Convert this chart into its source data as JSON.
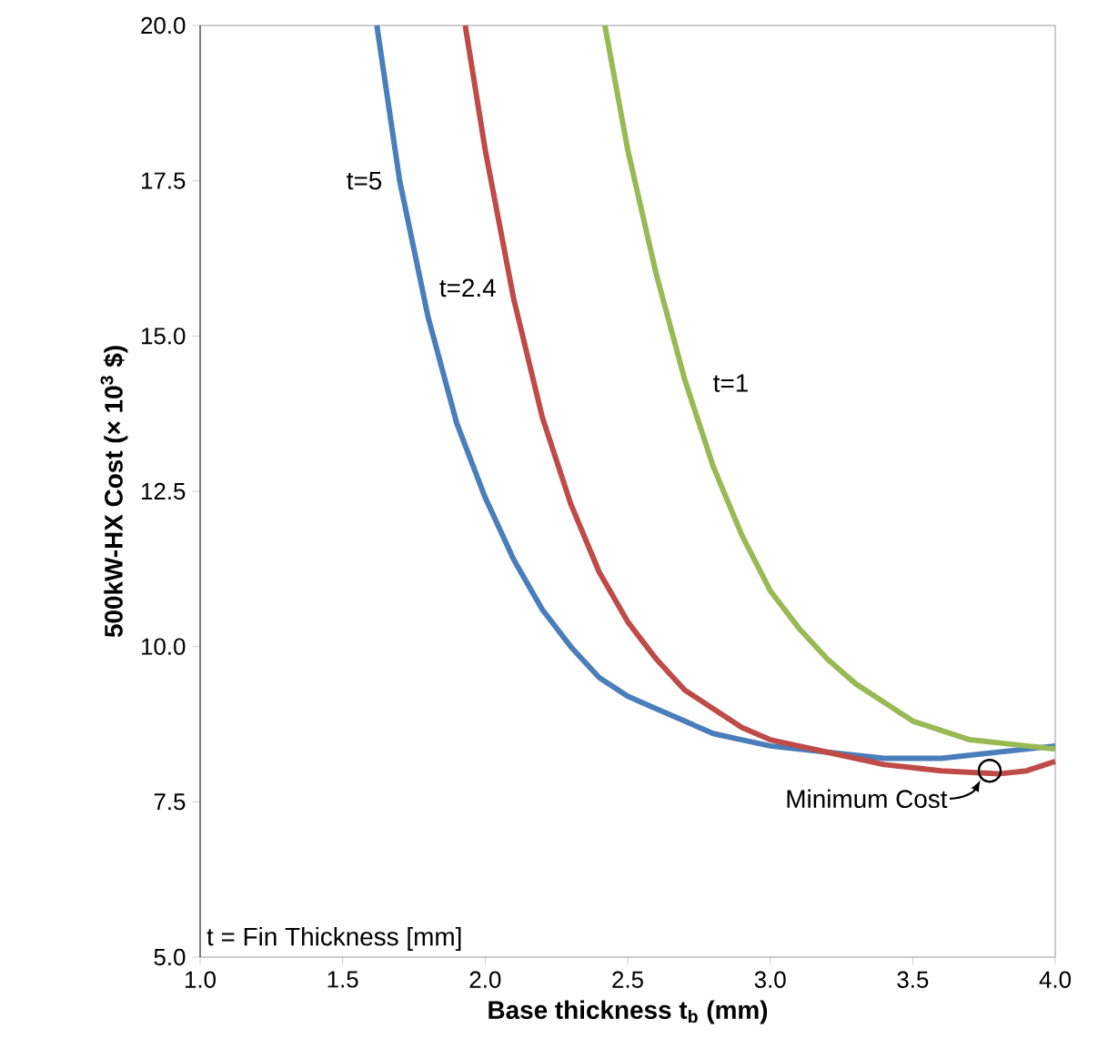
{
  "chart_data": {
    "type": "line",
    "xlabel": "Base thickness t$_{b}$ (mm)",
    "ylabel": "500kW-HX Cost (× 10$^{3}$ $)",
    "xlim": [
      1.0,
      4.0
    ],
    "ylim": [
      5.0,
      20.0
    ],
    "xticks": [
      {
        "value": 1.0,
        "label": "1.0"
      },
      {
        "value": 1.5,
        "label": "1.5"
      },
      {
        "value": 2.0,
        "label": "2.0"
      },
      {
        "value": 2.5,
        "label": "2.5"
      },
      {
        "value": 3.0,
        "label": "3.0"
      },
      {
        "value": 3.5,
        "label": "3.5"
      },
      {
        "value": 4.0,
        "label": "4.0"
      }
    ],
    "yticks": [
      {
        "value": 5.0,
        "label": "5.0"
      },
      7.5,
      {
        "value": 10.0,
        "label": "10.0"
      },
      12.5,
      {
        "value": 15.0,
        "label": "15.0"
      },
      17.5,
      {
        "value": 20.0,
        "label": "20.0"
      }
    ],
    "grid": false,
    "legend": false,
    "marker": "none",
    "line_style": "solid",
    "series": [
      {
        "name": "t=5",
        "color": "#4a7ebb",
        "x": [
          1.62,
          1.7,
          1.8,
          1.9,
          2.0,
          2.1,
          2.2,
          2.3,
          2.4,
          2.5,
          2.6,
          2.7,
          2.8,
          2.9,
          3.0,
          3.2,
          3.4,
          3.6,
          3.8,
          4.0
        ],
        "values": [
          20.0,
          17.5,
          15.3,
          13.6,
          12.4,
          11.4,
          10.6,
          10.0,
          9.5,
          9.2,
          9.0,
          8.8,
          8.6,
          8.5,
          8.4,
          8.3,
          8.2,
          8.2,
          8.3,
          8.4
        ]
      },
      {
        "name": "t=2.4",
        "color": "#be4b48",
        "x": [
          1.93,
          2.0,
          2.1,
          2.2,
          2.3,
          2.4,
          2.5,
          2.6,
          2.7,
          2.8,
          2.9,
          3.0,
          3.2,
          3.4,
          3.6,
          3.8,
          3.9,
          4.0
        ],
        "values": [
          20.0,
          18.0,
          15.6,
          13.7,
          12.3,
          11.2,
          10.4,
          9.8,
          9.3,
          9.0,
          8.7,
          8.5,
          8.3,
          8.1,
          8.0,
          7.95,
          8.0,
          8.15
        ]
      },
      {
        "name": "t=1",
        "color": "#98b954",
        "x": [
          2.42,
          2.5,
          2.6,
          2.7,
          2.8,
          2.9,
          3.0,
          3.1,
          3.2,
          3.3,
          3.4,
          3.5,
          3.6,
          3.7,
          3.8,
          3.9,
          4.0
        ],
        "values": [
          20.0,
          18.0,
          16.0,
          14.3,
          12.9,
          11.8,
          10.9,
          10.3,
          9.8,
          9.4,
          9.1,
          8.8,
          8.65,
          8.5,
          8.45,
          8.4,
          8.35
        ]
      }
    ],
    "annotations": [
      {
        "text": "Minimum Cost",
        "x": 3.77,
        "y": 8.0
      },
      "t = Fin Thickness [mm]"
    ]
  }
}
